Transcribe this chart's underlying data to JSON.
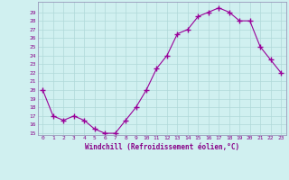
{
  "x": [
    0,
    1,
    2,
    3,
    4,
    5,
    6,
    7,
    8,
    9,
    10,
    11,
    12,
    13,
    14,
    15,
    16,
    17,
    18,
    19,
    20,
    21,
    22,
    23
  ],
  "y": [
    20,
    17,
    16.5,
    17,
    16.5,
    15.5,
    15,
    15,
    16.5,
    18,
    20,
    22.5,
    24,
    26.5,
    27,
    28.5,
    29,
    29.5,
    29,
    28,
    28,
    25,
    23.5,
    22
  ],
  "line_color": "#990099",
  "marker": "+",
  "marker_size": 4,
  "bg_color": "#d0f0f0",
  "grid_color": "#b0d8d8",
  "xlabel": "Windchill (Refroidissement éolien,°C)",
  "xlim": [
    -0.5,
    23.5
  ],
  "ylim": [
    14.8,
    30.2
  ],
  "yticks": [
    15,
    16,
    17,
    18,
    19,
    20,
    21,
    22,
    23,
    24,
    25,
    26,
    27,
    28,
    29
  ],
  "xticks": [
    0,
    1,
    2,
    3,
    4,
    5,
    6,
    7,
    8,
    9,
    10,
    11,
    12,
    13,
    14,
    15,
    16,
    17,
    18,
    19,
    20,
    21,
    22,
    23
  ],
  "tick_color": "#880088",
  "label_color": "#880088"
}
